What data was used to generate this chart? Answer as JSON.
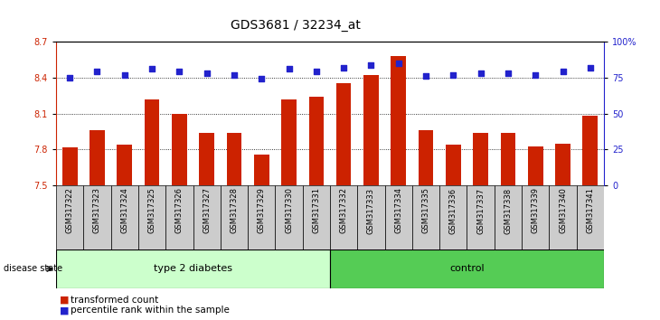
{
  "title": "GDS3681 / 32234_at",
  "samples": [
    "GSM317322",
    "GSM317323",
    "GSM317324",
    "GSM317325",
    "GSM317326",
    "GSM317327",
    "GSM317328",
    "GSM317329",
    "GSM317330",
    "GSM317331",
    "GSM317332",
    "GSM317333",
    "GSM317334",
    "GSM317335",
    "GSM317336",
    "GSM317337",
    "GSM317338",
    "GSM317339",
    "GSM317340",
    "GSM317341"
  ],
  "transformed_count": [
    7.82,
    7.96,
    7.84,
    8.22,
    8.1,
    7.94,
    7.94,
    7.76,
    8.22,
    8.24,
    8.35,
    8.42,
    8.58,
    7.96,
    7.84,
    7.94,
    7.94,
    7.83,
    7.85,
    8.08
  ],
  "percentile_rank": [
    75,
    79,
    77,
    81,
    79,
    78,
    77,
    74,
    81,
    79,
    82,
    84,
    85,
    76,
    77,
    78,
    78,
    77,
    79,
    82
  ],
  "group1_label": "type 2 diabetes",
  "group1_count": 10,
  "group2_label": "control",
  "group2_count": 10,
  "disease_state_label": "disease state",
  "legend_red": "transformed count",
  "legend_blue": "percentile rank within the sample",
  "ylim_left": [
    7.5,
    8.7
  ],
  "ylim_right": [
    0,
    100
  ],
  "yticks_left": [
    7.5,
    7.8,
    8.1,
    8.4,
    8.7
  ],
  "yticks_right": [
    0,
    25,
    50,
    75,
    100
  ],
  "bar_color": "#cc2200",
  "dot_color": "#2222cc",
  "group1_color": "#ccffcc",
  "group2_color": "#55cc55",
  "bg_color": "#cccccc",
  "title_fontsize": 10,
  "tick_fontsize": 7,
  "label_fontsize": 8
}
